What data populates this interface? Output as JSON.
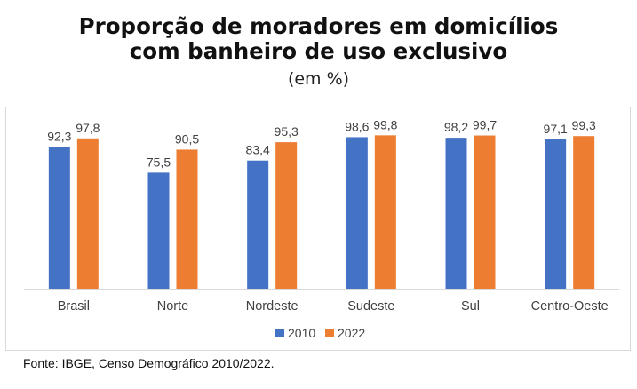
{
  "title_line1": "Proporção de moradores em domicílios",
  "title_line2": "com banheiro de uso exclusivo",
  "subtitle": "(em %)",
  "source": "Fonte: IBGE, Censo Demográfico 2010/2022.",
  "colors": {
    "s2010": "#4472c4",
    "s2022": "#ed7d31"
  },
  "chart_data": {
    "type": "bar",
    "categories": [
      "Brasil",
      "Norte",
      "Nordeste",
      "Sudeste",
      "Sul",
      "Centro-Oeste"
    ],
    "series": [
      {
        "name": "2010",
        "values": [
          92.3,
          75.5,
          83.4,
          98.6,
          98.2,
          97.1
        ],
        "labels": [
          "92,3",
          "75,5",
          "83,4",
          "98,6",
          "98,2",
          "97,1"
        ]
      },
      {
        "name": "2022",
        "values": [
          97.8,
          90.5,
          95.3,
          99.8,
          99.7,
          99.3
        ],
        "labels": [
          "97,8",
          "90,5",
          "95,3",
          "99,8",
          "99,7",
          "99,3"
        ]
      }
    ],
    "legend_position": "bottom",
    "grid": false
  }
}
